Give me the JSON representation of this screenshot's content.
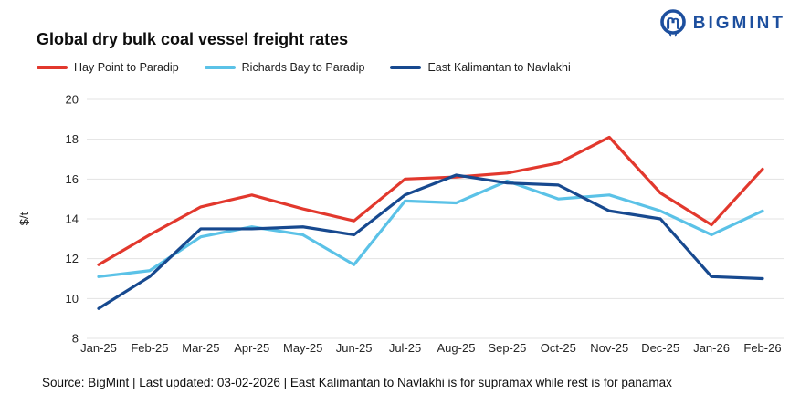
{
  "logo": {
    "text": "BIGMINT",
    "color": "#1D4F9E",
    "icon": "owl-mark-icon"
  },
  "header": {
    "title": "Global dry bulk coal vessel freight rates"
  },
  "chart_data": {
    "type": "line",
    "title": "Global dry bulk coal vessel freight rates",
    "categories": [
      "Jan-25",
      "Feb-25",
      "Mar-25",
      "Apr-25",
      "May-25",
      "Jun-25",
      "Jul-25",
      "Aug-25",
      "Sep-25",
      "Oct-25",
      "Nov-25",
      "Dec-25",
      "Jan-26",
      "Feb-26"
    ],
    "series": [
      {
        "name": "Hay Point to Paradip",
        "color": "#E2382D",
        "values": [
          11.7,
          13.2,
          14.6,
          15.2,
          14.5,
          13.9,
          16.0,
          16.1,
          16.3,
          16.8,
          18.1,
          15.3,
          13.7,
          16.5
        ]
      },
      {
        "name": "Richards Bay to Paradip",
        "color": "#5BC2E7",
        "values": [
          11.1,
          11.4,
          13.1,
          13.6,
          13.2,
          11.7,
          14.9,
          14.8,
          15.9,
          15.0,
          15.2,
          14.4,
          13.2,
          14.4
        ]
      },
      {
        "name": "East Kalimantan to Navlakhi",
        "color": "#17498F",
        "values": [
          9.5,
          11.1,
          13.5,
          13.5,
          13.6,
          13.2,
          15.2,
          16.2,
          15.8,
          15.7,
          14.4,
          14.0,
          11.1,
          11.0
        ]
      }
    ],
    "xlabel": "",
    "ylabel": "$/t",
    "ylim": [
      8,
      20
    ],
    "yticks": [
      8,
      10,
      12,
      14,
      16,
      18,
      20
    ],
    "grid": "horizontal",
    "gridline_color": "#E3E3E3",
    "tick_label_color": "#262626",
    "legend_position": "top-left"
  },
  "footer": {
    "source": "Source: BigMint | Last updated: 03-02-2026 | East Kalimantan to Navlakhi is for supramax while rest is for panamax"
  }
}
